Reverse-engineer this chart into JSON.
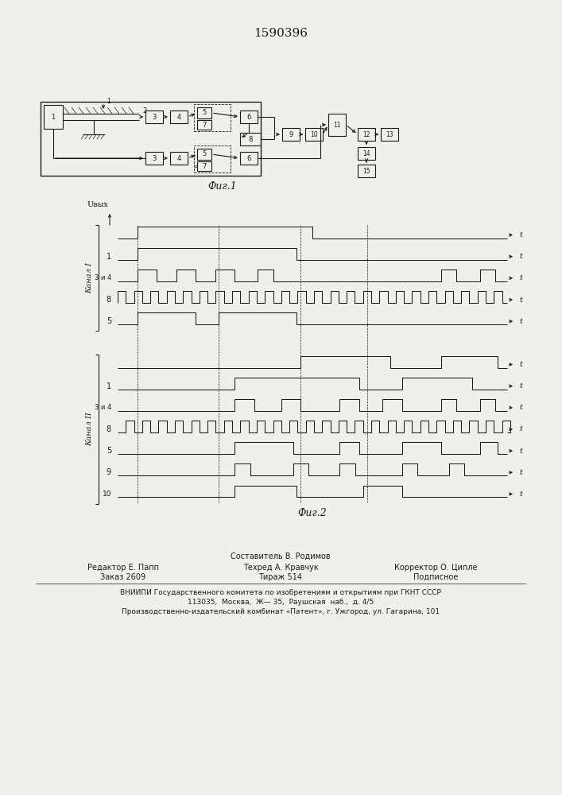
{
  "title": "1590396",
  "fig1_label": "Фиг.1",
  "fig2_label": "Фиг.2",
  "bg_color": "#f0f0eb",
  "line_color": "#1a1a1a",
  "kanal1_label": "Канал I",
  "kanal2_label": "Канал II",
  "footer_col1_line1": "Редактор Е. Папп",
  "footer_col1_line2": "Заказ 2609",
  "footer_col2_line0": "Составитель В. Родимов",
  "footer_col2_line1": "Техред А. Кравчук",
  "footer_col2_line2": "Тираж 514",
  "footer_col3_line1": "Корректор О. Ципле",
  "footer_col3_line2": "Подписное",
  "footer_line3": "ВНИИПИ Государственного комитета по изобретениям и открытиям при ГКНТ СССР",
  "footer_line4": "113035,  Москва,  Ж— 35,  Раушская  наб.,  д. 4/5",
  "footer_line5": "Производственно-издательский комбинат «Патент», г. Ужгород, ул. Гагарина, 101"
}
